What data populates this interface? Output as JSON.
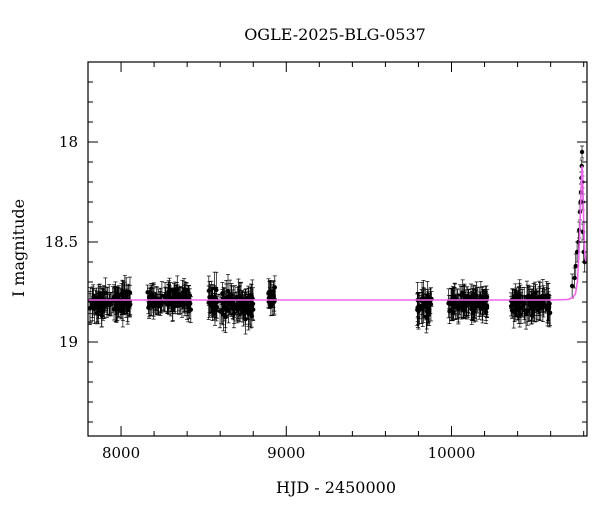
{
  "chart_data": {
    "type": "scatter",
    "title": "OGLE-2025-BLG-0537",
    "xlabel": "HJD - 2450000",
    "ylabel": "I magnitude",
    "xlim": [
      7800,
      10820
    ],
    "ylim": [
      19.47,
      17.6
    ],
    "y_inverted": true,
    "grid": false,
    "legend": "none",
    "x_ticks": [
      8000,
      9000,
      10000
    ],
    "y_ticks": [
      18,
      18.5,
      19
    ],
    "x_minor_ticks": [
      7800,
      8200,
      8400,
      8600,
      8800,
      9200,
      9400,
      9600,
      9800,
      10200,
      10400,
      10600,
      10800
    ],
    "y_minor_ticks": [
      17.7,
      17.8,
      17.9,
      18.1,
      18.2,
      18.3,
      18.4,
      18.6,
      18.7,
      18.8,
      18.9,
      19.1,
      19.2,
      19.3,
      19.4
    ],
    "colors": {
      "points": "#000000",
      "model": "#ee66ee",
      "axes": "#000000"
    },
    "observing_seasons": [
      {
        "x_range": [
          7810,
          8060
        ],
        "mag_mean": 18.8,
        "mag_scatter": 0.07,
        "err": 0.055
      },
      {
        "x_range": [
          8160,
          8430
        ],
        "mag_mean": 18.79,
        "mag_scatter": 0.06,
        "err": 0.05
      },
      {
        "x_range": [
          8530,
          8800
        ],
        "mag_mean": 18.81,
        "mag_scatter": 0.08,
        "err": 0.06
      },
      {
        "x_range": [
          8890,
          8935
        ],
        "mag_mean": 18.78,
        "mag_scatter": 0.06,
        "err": 0.05
      },
      {
        "x_range": [
          9790,
          9880
        ],
        "mag_mean": 18.82,
        "mag_scatter": 0.06,
        "err": 0.06
      },
      {
        "x_range": [
          9980,
          10220
        ],
        "mag_mean": 18.8,
        "mag_scatter": 0.06,
        "err": 0.055
      },
      {
        "x_range": [
          10360,
          10600
        ],
        "mag_mean": 18.81,
        "mag_scatter": 0.06,
        "err": 0.055
      }
    ],
    "rising_points": [
      {
        "x": 10730,
        "y": 18.72,
        "err": 0.06
      },
      {
        "x": 10745,
        "y": 18.68,
        "err": 0.05
      },
      {
        "x": 10752,
        "y": 18.62,
        "err": 0.06
      },
      {
        "x": 10760,
        "y": 18.55,
        "err": 0.05
      },
      {
        "x": 10768,
        "y": 18.5,
        "err": 0.05
      },
      {
        "x": 10773,
        "y": 18.44,
        "err": 0.04
      },
      {
        "x": 10777,
        "y": 18.35,
        "err": 0.04
      },
      {
        "x": 10781,
        "y": 18.3,
        "err": 0.04
      },
      {
        "x": 10784,
        "y": 18.25,
        "err": 0.04
      },
      {
        "x": 10786,
        "y": 18.18,
        "err": 0.03
      },
      {
        "x": 10788,
        "y": 18.12,
        "err": 0.03
      },
      {
        "x": 10790,
        "y": 18.05,
        "err": 0.03
      },
      {
        "x": 10792,
        "y": 18.2,
        "err": 0.03
      },
      {
        "x": 10794,
        "y": 18.3,
        "err": 0.04
      },
      {
        "x": 10796,
        "y": 18.45,
        "err": 0.04
      },
      {
        "x": 10800,
        "y": 18.55,
        "err": 0.05
      },
      {
        "x": 10806,
        "y": 18.6,
        "err": 0.05
      }
    ],
    "model_curve": {
      "baseline_mag": 18.79,
      "points": [
        {
          "x": 7800,
          "y": 18.79
        },
        {
          "x": 10600,
          "y": 18.79
        },
        {
          "x": 10700,
          "y": 18.788
        },
        {
          "x": 10730,
          "y": 18.78
        },
        {
          "x": 10750,
          "y": 18.76
        },
        {
          "x": 10762,
          "y": 18.7
        },
        {
          "x": 10770,
          "y": 18.58
        },
        {
          "x": 10776,
          "y": 18.45
        },
        {
          "x": 10780,
          "y": 18.35
        },
        {
          "x": 10784,
          "y": 18.25
        },
        {
          "x": 10787,
          "y": 18.17
        },
        {
          "x": 10790,
          "y": 18.12
        },
        {
          "x": 10793,
          "y": 18.15
        },
        {
          "x": 10796,
          "y": 18.25
        },
        {
          "x": 10800,
          "y": 18.4
        },
        {
          "x": 10806,
          "y": 18.55
        },
        {
          "x": 10814,
          "y": 18.6
        }
      ]
    }
  }
}
